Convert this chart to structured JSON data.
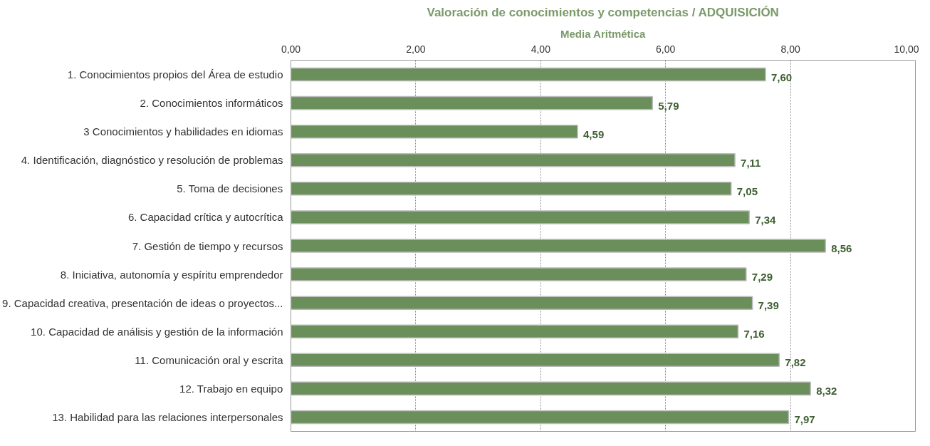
{
  "chart_data": {
    "type": "bar",
    "orientation": "horizontal",
    "title": "Valoración de conocimientos y competencias / ADQUISICIÓN",
    "subtitle": "Media Aritmética",
    "categories": [
      "1. Conocimientos propios del Área de estudio",
      "2. Conocimientos informáticos",
      "3 Conocimientos y habilidades en idiomas",
      "4. Identificación, diagnóstico y resolución de problemas",
      "5. Toma de decisiones",
      "6. Capacidad crítica y autocrítica",
      "7. Gestión de tiempo y recursos",
      "8. Iniciativa, autonomía y espíritu emprendedor",
      "9. Capacidad creativa, presentación de ideas o proyectos...",
      "10. Capacidad de análisis y gestión de la información",
      "11. Comunicación oral y escrita",
      "12. Trabajo en equipo",
      "13. Habilidad para las relaciones interpersonales"
    ],
    "values": [
      7.6,
      5.79,
      4.59,
      7.11,
      7.05,
      7.34,
      8.56,
      7.29,
      7.39,
      7.16,
      7.82,
      8.32,
      7.97
    ],
    "value_labels": [
      "7,60",
      "5,79",
      "4,59",
      "7,11",
      "7,05",
      "7,34",
      "8,56",
      "7,29",
      "7,39",
      "7,16",
      "7,82",
      "8,32",
      "7,97"
    ],
    "color": "#6b8f5b",
    "xlim": [
      0,
      10
    ],
    "xticks": [
      {
        "value": 0,
        "label": "0,00"
      },
      {
        "value": 2,
        "label": "2,00"
      },
      {
        "value": 4,
        "label": "4,00"
      },
      {
        "value": 6,
        "label": "6,00"
      },
      {
        "value": 8,
        "label": "8,00"
      },
      {
        "value": 10,
        "label": "10,00"
      }
    ],
    "grid": "x"
  }
}
